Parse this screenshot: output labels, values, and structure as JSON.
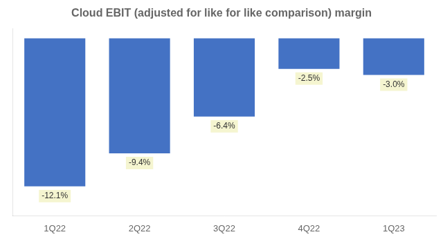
{
  "chart_data": {
    "type": "bar",
    "title": "Cloud EBIT (adjusted for like for like comparison) margin",
    "categories": [
      "1Q22",
      "2Q22",
      "3Q22",
      "4Q22",
      "1Q23"
    ],
    "values": [
      -12.1,
      -9.4,
      -6.4,
      -2.5,
      -3.0
    ],
    "value_labels": [
      "-12.1%",
      "-9.4%",
      "-6.4%",
      "-2.5%",
      "-3.0%"
    ],
    "color": "#4472C4",
    "ylim": [
      -14.5,
      0.8
    ],
    "yticks": [],
    "grid": false,
    "data_labels": true,
    "tick_labels": "x"
  }
}
